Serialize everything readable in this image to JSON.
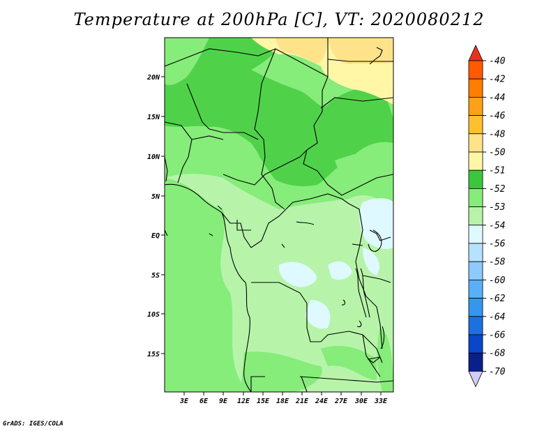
{
  "title": "Temperature at 200hPa [C], VT: 2020080212",
  "credit": "GrADS: IGES/COLA",
  "map": {
    "lat_labels": [
      "20N",
      "15N",
      "10N",
      "5N",
      "EQ",
      "5S",
      "10S",
      "15S"
    ],
    "lon_labels": [
      "3E",
      "6E",
      "9E",
      "12E",
      "15E",
      "18E",
      "21E",
      "24E",
      "27E",
      "30E",
      "33E"
    ],
    "region_colors": {
      "lightest_green": "#b7f4aa",
      "light_green": "#86ec7a",
      "mid_green": "#4fd24a",
      "pale_cyan": "#def9ff",
      "pale_yellow": "#fff7a6",
      "tan_yellow": "#ffe38a"
    }
  },
  "colorbar": {
    "labels": [
      "-40",
      "-42",
      "-44",
      "-46",
      "-48",
      "-50",
      "-51",
      "-52",
      "-53",
      "-54",
      "-56",
      "-58",
      "-60",
      "-62",
      "-64",
      "-66",
      "-68",
      "-70"
    ],
    "colors": [
      "#e8321e",
      "#ff5a00",
      "#ff7e00",
      "#ffa018",
      "#ffc030",
      "#ffe38a",
      "#fff7a6",
      "#3cc63c",
      "#86ec7a",
      "#b7f4aa",
      "#def9ff",
      "#b5e2ff",
      "#8ccaff",
      "#5ab0f7",
      "#3596f0",
      "#1c70e0",
      "#0a46c8",
      "#0a1f8a"
    ],
    "top_arrow_color": "#e8321e",
    "bottom_arrow_color": "#d2cdf5"
  }
}
